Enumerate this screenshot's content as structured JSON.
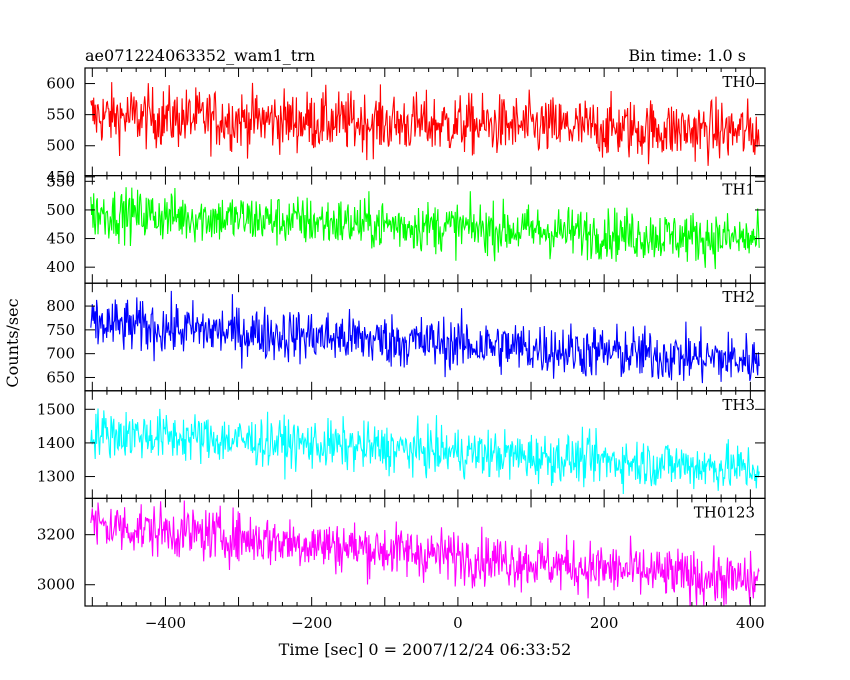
{
  "header": {
    "left_title": "ae071224063352_wam1_trn",
    "right_title": "Bin time: 1.0 s"
  },
  "chart_data": {
    "type": "line",
    "xlabel": "Time [sec] 0 = 2007/12/24 06:33:52",
    "ylabel": "Counts/sec",
    "xlim": [
      -510,
      420
    ],
    "xticks": [
      -400,
      -200,
      0,
      200,
      400
    ],
    "x_tick_labels": [
      "−400",
      "−200",
      "0",
      "200",
      "400"
    ],
    "bin_time": 1.0,
    "panels": [
      {
        "name": "TH0",
        "color": "#ff0000",
        "ylim": [
          452,
          625
        ],
        "yticks": [
          450,
          500,
          550,
          600
        ],
        "trend_start": 548,
        "trend_end": 522,
        "noise": 24
      },
      {
        "name": "TH1",
        "color": "#00ff00",
        "ylim": [
          372,
          560
        ],
        "yticks": [
          400,
          450,
          500,
          550
        ],
        "trend_start": 495,
        "trend_end": 448,
        "noise": 22
      },
      {
        "name": "TH2",
        "color": "#0000ff",
        "ylim": [
          622,
          848
        ],
        "yticks": [
          650,
          700,
          750,
          800
        ],
        "trend_start": 762,
        "trend_end": 685,
        "noise": 28
      },
      {
        "name": "TH3",
        "color": "#00ffff",
        "ylim": [
          1235,
          1555
        ],
        "yticks": [
          1300,
          1400,
          1500
        ],
        "trend_start": 1432,
        "trend_end": 1322,
        "noise": 36
      },
      {
        "name": "TH0123",
        "color": "#ff00ff",
        "ylim": [
          2915,
          3345
        ],
        "yticks": [
          3000,
          3200
        ],
        "trend_start": 3240,
        "trend_end": 3010,
        "noise": 52
      }
    ]
  }
}
